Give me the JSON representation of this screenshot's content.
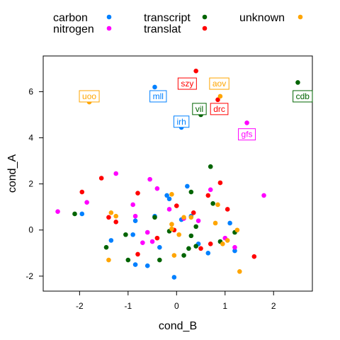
{
  "chart_data": {
    "type": "scatter",
    "xlabel": "cond_B",
    "ylabel": "cond_A",
    "xlim": [
      -2.75,
      2.8
    ],
    "ylim": [
      -2.65,
      7.55
    ],
    "x_ticks": [
      -2,
      -1,
      0,
      1,
      2
    ],
    "y_ticks": [
      -2,
      0,
      2,
      4,
      6
    ],
    "x_tick_labels": [
      "-2",
      "-1",
      "0",
      "1",
      "2"
    ],
    "y_tick_labels": [
      "-2",
      "0",
      "2",
      "4",
      "6"
    ],
    "grid": false,
    "legend_position": "top",
    "series": [
      {
        "name": "carbon",
        "color": "#0080ff",
        "points": [
          {
            "x": -0.45,
            "y": 6.2
          },
          {
            "x": 0.1,
            "y": 4.45
          },
          {
            "x": 0.22,
            "y": 1.9
          },
          {
            "x": -1.95,
            "y": 0.7
          },
          {
            "x": -1.35,
            "y": -0.45
          },
          {
            "x": -0.85,
            "y": 0.4
          },
          {
            "x": -0.45,
            "y": 0.6
          },
          {
            "x": -0.2,
            "y": 1.5
          },
          {
            "x": 0.3,
            "y": 0.6
          },
          {
            "x": 0.45,
            "y": -0.6
          },
          {
            "x": 0.65,
            "y": -1.0
          },
          {
            "x": 1.1,
            "y": 0.3
          },
          {
            "x": 1.2,
            "y": -0.9
          },
          {
            "x": -0.85,
            "y": -1.5
          },
          {
            "x": -0.6,
            "y": -1.55
          },
          {
            "x": -0.05,
            "y": -2.05
          },
          {
            "x": -0.9,
            "y": -0.2
          },
          {
            "x": -0.35,
            "y": -0.75
          },
          {
            "x": 0.1,
            "y": 0.45
          },
          {
            "x": -0.15,
            "y": 1.35
          }
        ]
      },
      {
        "name": "nitrogen",
        "color": "#ff00ff",
        "points": [
          {
            "x": 1.45,
            "y": 4.65
          },
          {
            "x": -2.45,
            "y": 0.8
          },
          {
            "x": -1.85,
            "y": 1.2
          },
          {
            "x": -1.25,
            "y": 2.45
          },
          {
            "x": -0.55,
            "y": 2.2
          },
          {
            "x": -0.4,
            "y": 1.8
          },
          {
            "x": 0.15,
            "y": 0.5
          },
          {
            "x": 0.45,
            "y": 0.4
          },
          {
            "x": 0.7,
            "y": 1.75
          },
          {
            "x": 1.0,
            "y": -0.35
          },
          {
            "x": 1.2,
            "y": -0.75
          },
          {
            "x": 1.8,
            "y": 1.5
          },
          {
            "x": -0.9,
            "y": 1.1
          },
          {
            "x": -0.7,
            "y": -0.55
          },
          {
            "x": -0.6,
            "y": -0.1
          },
          {
            "x": -0.15,
            "y": 0.9
          },
          {
            "x": -0.5,
            "y": -0.5
          },
          {
            "x": -0.85,
            "y": 0.6
          }
        ]
      },
      {
        "name": "transcript",
        "color": "#006400",
        "points": [
          {
            "x": 2.5,
            "y": 6.4
          },
          {
            "x": 0.5,
            "y": 5.0
          },
          {
            "x": -2.1,
            "y": 0.7
          },
          {
            "x": -1.45,
            "y": -0.75
          },
          {
            "x": -1.05,
            "y": -0.2
          },
          {
            "x": -1.0,
            "y": -1.3
          },
          {
            "x": -0.35,
            "y": -1.3
          },
          {
            "x": -0.15,
            "y": -0.05
          },
          {
            "x": 0.15,
            "y": -1.1
          },
          {
            "x": 0.3,
            "y": -0.25
          },
          {
            "x": 0.4,
            "y": -0.7
          },
          {
            "x": 0.4,
            "y": 0.15
          },
          {
            "x": 0.7,
            "y": 2.75
          },
          {
            "x": 0.75,
            "y": 1.15
          },
          {
            "x": 0.9,
            "y": -0.5
          },
          {
            "x": 1.2,
            "y": -0.1
          },
          {
            "x": 0.3,
            "y": 1.65
          },
          {
            "x": -0.45,
            "y": 0.55
          },
          {
            "x": 0.25,
            "y": -0.8
          }
        ]
      },
      {
        "name": "translat",
        "color": "#ff0000",
        "points": [
          {
            "x": 0.4,
            "y": 6.9
          },
          {
            "x": 0.85,
            "y": 5.65
          },
          {
            "x": -1.55,
            "y": 2.25
          },
          {
            "x": -1.4,
            "y": 0.55
          },
          {
            "x": -1.25,
            "y": 0.35
          },
          {
            "x": -1.95,
            "y": 1.65
          },
          {
            "x": -0.8,
            "y": 1.6
          },
          {
            "x": -0.8,
            "y": -1.05
          },
          {
            "x": -0.4,
            "y": -0.35
          },
          {
            "x": 0.0,
            "y": 1.05
          },
          {
            "x": 0.35,
            "y": 0.75
          },
          {
            "x": 0.65,
            "y": 1.5
          },
          {
            "x": 0.7,
            "y": -0.6
          },
          {
            "x": 0.9,
            "y": 2.05
          },
          {
            "x": 1.05,
            "y": 0.9
          },
          {
            "x": 1.6,
            "y": -1.15
          },
          {
            "x": -0.05,
            "y": 0.0
          },
          {
            "x": 0.5,
            "y": -0.8
          }
        ]
      },
      {
        "name": "unknown",
        "color": "#ffa500",
        "points": [
          {
            "x": -1.8,
            "y": 5.55
          },
          {
            "x": 0.9,
            "y": 5.8
          },
          {
            "x": -1.35,
            "y": 0.75
          },
          {
            "x": -1.25,
            "y": 0.6
          },
          {
            "x": -1.4,
            "y": -1.3
          },
          {
            "x": -0.1,
            "y": 0.25
          },
          {
            "x": -0.1,
            "y": 1.55
          },
          {
            "x": -0.05,
            "y": -1.1
          },
          {
            "x": 0.15,
            "y": 0.55
          },
          {
            "x": 0.3,
            "y": 0.55
          },
          {
            "x": 0.05,
            "y": -0.2
          },
          {
            "x": 0.8,
            "y": 0.3
          },
          {
            "x": 0.85,
            "y": 1.1
          },
          {
            "x": 0.95,
            "y": -0.6
          },
          {
            "x": 1.05,
            "y": -0.45
          },
          {
            "x": 1.25,
            "y": 0.0
          },
          {
            "x": 1.3,
            "y": -1.8
          },
          {
            "x": -0.1,
            "y": 0.05
          }
        ]
      }
    ],
    "annotations": [
      {
        "text": "uoo",
        "x": -1.8,
        "y": 5.8,
        "color": "#ffa500"
      },
      {
        "text": "mll",
        "x": -0.38,
        "y": 5.8,
        "color": "#0080ff"
      },
      {
        "text": "szy",
        "x": 0.22,
        "y": 6.35,
        "color": "#ff0000"
      },
      {
        "text": "aov",
        "x": 0.88,
        "y": 6.35,
        "color": "#ffa500"
      },
      {
        "text": "cdb",
        "x": 2.6,
        "y": 5.8,
        "color": "#006400"
      },
      {
        "text": "vil",
        "x": 0.47,
        "y": 5.25,
        "color": "#006400"
      },
      {
        "text": "drc",
        "x": 0.88,
        "y": 5.25,
        "color": "#ff0000"
      },
      {
        "text": "irh",
        "x": 0.1,
        "y": 4.7,
        "color": "#0080ff"
      },
      {
        "text": "gfs",
        "x": 1.45,
        "y": 4.15,
        "color": "#ff00ff"
      }
    ]
  }
}
